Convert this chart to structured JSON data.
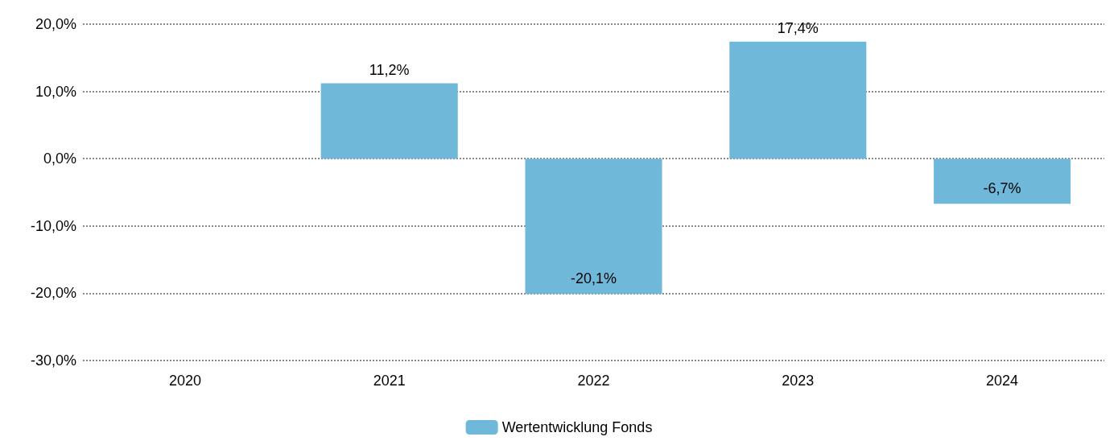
{
  "chart_data": {
    "type": "bar",
    "categories": [
      "2020",
      "2021",
      "2022",
      "2023",
      "2024"
    ],
    "series": [
      {
        "name": "Wertentwicklung Fonds",
        "color": "#70b8da",
        "values": [
          null,
          11.2,
          -20.1,
          17.4,
          -6.7
        ],
        "value_labels": [
          null,
          "11,2%",
          "-20,1%",
          "17,4%",
          "-6,7%"
        ]
      }
    ],
    "ylim": [
      -30,
      20
    ],
    "yticks": [
      {
        "value": -30,
        "label": "-30,0%"
      },
      {
        "value": -20,
        "label": "-20,0%"
      },
      {
        "value": -10,
        "label": "-10,0%"
      },
      {
        "value": 0,
        "label": "0,0%"
      },
      {
        "value": 10,
        "label": "10,0%"
      },
      {
        "value": 20,
        "label": "20,0%"
      }
    ],
    "grid": "y",
    "legend": "bottom"
  }
}
